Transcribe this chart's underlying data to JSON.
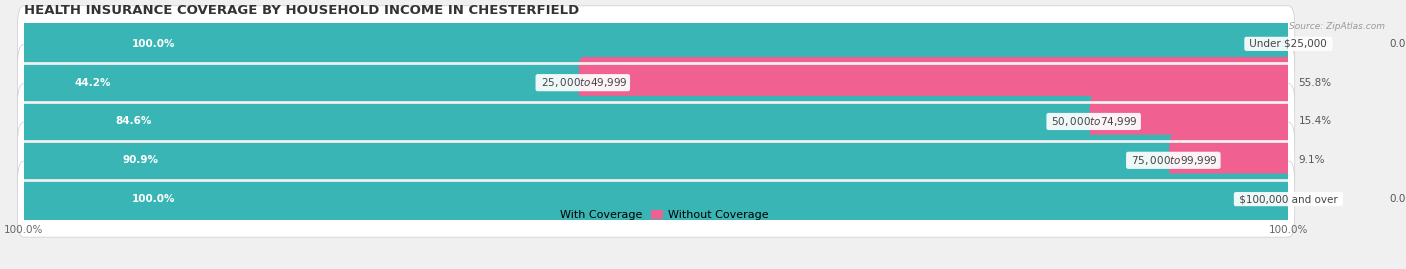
{
  "title": "HEALTH INSURANCE COVERAGE BY HOUSEHOLD INCOME IN CHESTERFIELD",
  "source": "Source: ZipAtlas.com",
  "categories": [
    "Under $25,000",
    "$25,000 to $49,999",
    "$50,000 to $74,999",
    "$75,000 to $99,999",
    "$100,000 and over"
  ],
  "with_coverage": [
    100.0,
    44.2,
    84.6,
    90.9,
    100.0
  ],
  "without_coverage": [
    0.0,
    55.8,
    15.4,
    9.1,
    0.0
  ],
  "color_with": "#3ab5b5",
  "color_without": "#f06090",
  "color_with_light": "#b8e0e0",
  "color_without_light": "#f8c8d8",
  "bar_height": 0.72,
  "background_color": "#f0f0f0",
  "row_bg_color": "#e8e8e8",
  "title_fontsize": 9.5,
  "label_fontsize": 7.5,
  "value_fontsize": 7.5,
  "tick_fontsize": 7.5,
  "legend_fontsize": 8
}
